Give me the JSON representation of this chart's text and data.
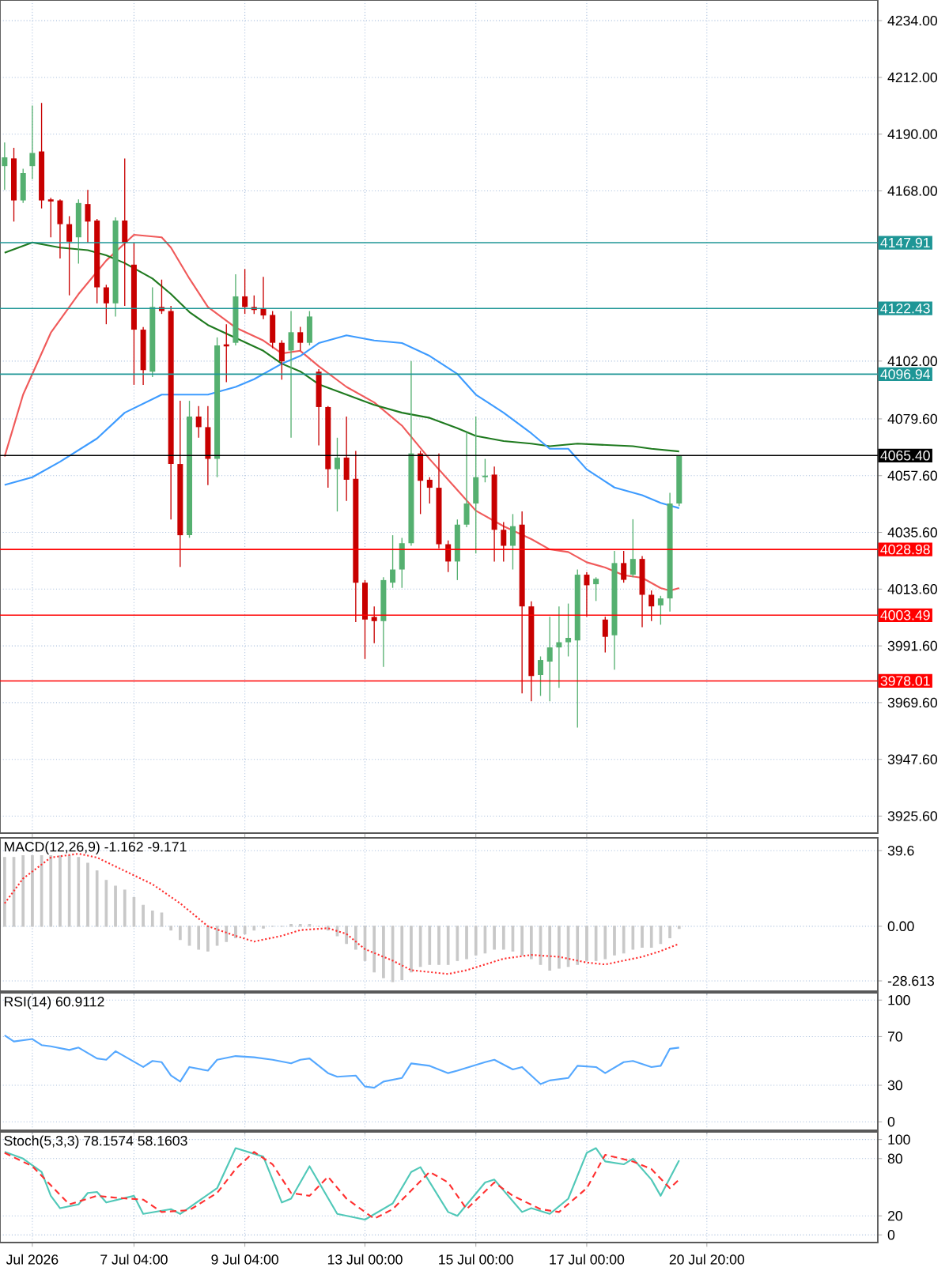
{
  "chart_data": [
    {
      "type": "candlestick",
      "categories": [
        null,
        null,
        null,
        null,
        null,
        null,
        null,
        null,
        null,
        null,
        null,
        null,
        null,
        null,
        null,
        null,
        null,
        null,
        null,
        null,
        null,
        null,
        null,
        null,
        null,
        null,
        null,
        null,
        null,
        null,
        null,
        null,
        null,
        null,
        null,
        null,
        null,
        null,
        null,
        null,
        null,
        null,
        null,
        null,
        null,
        null,
        null,
        null,
        null,
        null,
        null,
        null,
        null,
        null,
        null,
        null,
        null,
        null,
        null,
        null,
        null,
        null,
        null,
        null,
        null,
        null,
        null,
        null,
        null,
        null,
        null,
        null,
        null,
        null,
        null,
        null,
        null,
        null,
        null,
        null,
        null,
        null,
        null,
        null,
        null,
        null,
        null,
        null,
        null,
        null,
        null,
        null,
        null,
        null,
        null
      ],
      "ohlc": [
        [
          4177.6,
          4186.8,
          4168.4,
          4181.0
        ],
        [
          4180.6,
          4184.7,
          4156.1,
          4164.3
        ],
        [
          4164.3,
          4176.6,
          4163.3,
          4174.9
        ],
        [
          4177.6,
          4201.1,
          4172.5,
          4182.7
        ],
        [
          4183.3,
          4202.1,
          4161.2,
          4164.3
        ],
        [
          4164.7,
          4165.3,
          4150.0,
          4163.9
        ],
        [
          4164.3,
          4164.7,
          4141.8,
          4155.1
        ],
        [
          4155.1,
          4158.2,
          4127.5,
          4148.3
        ],
        [
          4150.0,
          4164.7,
          4139.8,
          4163.3
        ],
        [
          4162.9,
          4168.4,
          4147.9,
          4156.1
        ],
        [
          4156.5,
          4157.1,
          4124.4,
          4130.6
        ],
        [
          4130.6,
          4131.6,
          4116.3,
          4124.4
        ],
        [
          4124.4,
          4157.7,
          4119.3,
          4156.5
        ],
        [
          4156.5,
          4180.6,
          4123.4,
          4147.9
        ],
        [
          4139.4,
          4147.9,
          4092.8,
          4114.2
        ],
        [
          4114.2,
          4115.2,
          4092.8,
          4098.5
        ],
        [
          4097.9,
          4130.6,
          4095.8,
          4123.0
        ],
        [
          4123.0,
          4133.6,
          4120.3,
          4121.4
        ],
        [
          4121.4,
          4123.4,
          4040.6,
          4062.1
        ],
        [
          4062.1,
          4086.6,
          4022.2,
          4034.5
        ],
        [
          4034.5,
          4086.6,
          4033.5,
          4080.5
        ],
        [
          4080.5,
          4084.6,
          4072.3,
          4076.4
        ],
        [
          4076.4,
          4084.6,
          4053.9,
          4064.1
        ],
        [
          4064.1,
          4111.2,
          4057.0,
          4108.1
        ],
        [
          4108.5,
          4116.3,
          4093.8,
          4107.7
        ],
        [
          4109.1,
          4135.7,
          4108.1,
          4127.1
        ],
        [
          4127.1,
          4137.7,
          4120.3,
          4123.0
        ],
        [
          4123.0,
          4127.5,
          4120.3,
          4121.8
        ],
        [
          4122.4,
          4134.7,
          4118.3,
          4119.7
        ],
        [
          4119.9,
          4121.4,
          4107.0,
          4109.1
        ],
        [
          4109.1,
          4110.1,
          4094.8,
          4101.9
        ],
        [
          4106.1,
          4121.4,
          4072.3,
          4113.2
        ],
        [
          4113.2,
          4115.3,
          4106.1,
          4109.1
        ],
        [
          4109.1,
          4121.4,
          4108.1,
          4119.3
        ],
        [
          4097.9,
          4098.9,
          4069.3,
          4084.2
        ],
        [
          4084.2,
          4084.6,
          4052.9,
          4060.1
        ],
        [
          4060.1,
          4072.3,
          4043.7,
          4064.6
        ],
        [
          4064.6,
          4080.5,
          4047.8,
          4056.0
        ],
        [
          4056.4,
          4067.2,
          4000.8,
          4016.1
        ],
        [
          4016.1,
          4017.1,
          3986.5,
          4001.8
        ],
        [
          4002.8,
          4006.9,
          3992.6,
          4001.2
        ],
        [
          4001.2,
          4018.2,
          3983.4,
          4017.1
        ],
        [
          4016.1,
          4034.5,
          4014.1,
          4021.2
        ],
        [
          4021.2,
          4033.5,
          4014.1,
          4031.4
        ],
        [
          4031.4,
          4102.0,
          4030.4,
          4066.2
        ],
        [
          4066.2,
          4067.2,
          4042.7,
          4055.6
        ],
        [
          4056.0,
          4057.0,
          4046.8,
          4052.9
        ],
        [
          4052.9,
          4066.2,
          4029.4,
          4031.0
        ],
        [
          4031.0,
          4032.5,
          4020.2,
          4024.3
        ],
        [
          4024.3,
          4040.6,
          4017.1,
          4038.6
        ],
        [
          4038.6,
          4074.4,
          4037.6,
          4046.8
        ],
        [
          4046.8,
          4080.5,
          4027.4,
          4057.0
        ],
        [
          4057.0,
          4064.1,
          4055.0,
          4057.6
        ],
        [
          4058.0,
          4061.1,
          4024.3,
          4036.6
        ],
        [
          4036.6,
          4039.6,
          4024.3,
          4030.4
        ],
        [
          4030.4,
          4042.7,
          4021.2,
          4038.0
        ],
        [
          4038.6,
          4043.7,
          3973.2,
          4006.9
        ],
        [
          4006.9,
          4008.9,
          3970.1,
          3979.9
        ],
        [
          3980.3,
          3987.5,
          3972.2,
          3986.1
        ],
        [
          3985.5,
          4002.9,
          3970.1,
          3991.0
        ],
        [
          3991.0,
          4006.9,
          3975.3,
          3993.0
        ],
        [
          3993.0,
          4008.0,
          3987.5,
          3994.7
        ],
        [
          3993.7,
          4021.2,
          3959.9,
          4019.2
        ],
        [
          4019.2,
          4020.2,
          4002.9,
          4015.1
        ],
        [
          4015.5,
          4018.2,
          4009.0,
          4017.6
        ],
        [
          4001.8,
          4002.9,
          3989.0,
          3995.1
        ],
        [
          3995.7,
          4028.4,
          3982.4,
          4023.7
        ],
        [
          4023.7,
          4028.4,
          4016.1,
          4017.2
        ],
        [
          4019.2,
          4040.7,
          4018.2,
          4025.3
        ],
        [
          4025.3,
          4026.4,
          3998.8,
          4011.4
        ],
        [
          4011.4,
          4013.1,
          4001.2,
          4006.9
        ],
        [
          4007.3,
          4011.0,
          3999.8,
          4010.0
        ],
        [
          4010.0,
          4050.9,
          4004.9,
          4046.8
        ],
        [
          4046.8,
          4065.4,
          4045.8,
          4065.4
        ],
        null,
        null,
        null,
        null,
        null,
        null,
        null,
        null,
        null,
        null,
        null,
        null,
        null,
        null,
        null,
        null,
        null,
        null,
        null,
        null,
        null
      ],
      "colors": [
        "#55b070",
        "#c80000",
        "#55b070",
        "#55b070",
        "#c80000",
        "#c80000",
        "#c80000",
        "#c80000",
        "#55b070",
        "#c80000",
        "#c80000",
        "#c80000",
        "#55b070",
        "#c80000",
        "#c80000",
        "#c80000",
        "#55b070",
        "#c80000",
        "#c80000",
        "#c80000",
        "#55b070",
        "#c80000",
        "#c80000",
        "#55b070",
        "#c80000",
        "#55b070",
        "#c80000",
        "#c80000",
        "#c80000",
        "#c80000",
        "#c80000",
        "#55b070",
        "#c80000",
        "#55b070",
        "#c80000",
        "#c80000",
        "#55b070",
        "#c80000",
        "#c80000",
        "#c80000",
        "#c80000",
        "#55b070",
        "#55b070",
        "#55b070",
        "#55b070",
        "#c80000",
        "#c80000",
        "#c80000",
        "#c80000",
        "#55b070",
        "#55b070",
        "#55b070",
        "#55b070",
        "#c80000",
        "#c80000",
        "#55b070",
        "#c80000",
        "#c80000",
        "#55b070",
        "#55b070",
        "#55b070",
        "#55b070",
        "#55b070",
        "#c80000",
        "#55b070",
        "#c80000",
        "#55b070",
        "#c80000",
        "#55b070",
        "#c80000",
        "#c80000",
        "#55b070",
        "#55b070",
        "#55b070",
        null,
        null,
        null,
        null,
        null,
        null,
        null,
        null,
        null,
        null,
        null,
        null,
        null,
        null,
        null,
        null,
        null,
        null,
        null,
        null,
        null
      ],
      "series": [
        {
          "type": "line",
          "color": "#f05a5a",
          "values": [
            4065,
            null,
            4089,
            null,
            null,
            4113,
            null,
            null,
            4128,
            null,
            null,
            4141,
            null,
            null,
            4151,
            null,
            null,
            4150,
            4146,
            null,
            4134,
            null,
            4123,
            null,
            null,
            4115,
            null,
            null,
            4110,
            null,
            4105,
            null,
            4106,
            null,
            4100,
            null,
            null,
            4092,
            null,
            null,
            4086,
            null,
            null,
            4077,
            null,
            null,
            4064,
            null,
            null,
            4052,
            null,
            4044,
            null,
            null,
            4038,
            null,
            null,
            4033,
            null,
            4029,
            null,
            4028,
            null,
            4024,
            null,
            4022,
            null,
            4019,
            null,
            4018,
            null,
            4014,
            4013,
            4014,
            null,
            null,
            null,
            null,
            null,
            null,
            null,
            null,
            null,
            null,
            null,
            null,
            null,
            null,
            null,
            null,
            null,
            null,
            null,
            null,
            null
          ]
        },
        {
          "type": "line",
          "color": "#1f7a1f",
          "values": [
            4144,
            null,
            null,
            4148,
            null,
            null,
            4146,
            null,
            null,
            4145,
            null,
            4143,
            null,
            4140,
            null,
            null,
            4134,
            null,
            4128,
            null,
            4121,
            null,
            4116,
            null,
            null,
            4111,
            null,
            null,
            4106,
            null,
            4101,
            null,
            4098,
            null,
            4093,
            null,
            null,
            4089,
            null,
            null,
            4085,
            null,
            null,
            4082,
            null,
            null,
            4080,
            null,
            null,
            4076,
            null,
            4073,
            null,
            null,
            4071,
            null,
            null,
            4070,
            null,
            4069,
            null,
            null,
            4070,
            null,
            null,
            null,
            null,
            null,
            4069,
            null,
            4068,
            null,
            null,
            4067,
            null,
            null,
            null,
            null,
            null,
            null,
            null,
            null,
            null,
            null,
            null,
            null,
            null,
            null,
            null,
            null,
            null,
            null,
            null,
            null,
            null
          ]
        },
        {
          "type": "line",
          "color": "#3d9bff",
          "values": [
            4054,
            null,
            null,
            4057,
            null,
            null,
            4063,
            null,
            null,
            null,
            4072,
            null,
            null,
            4082,
            null,
            null,
            null,
            4089,
            null,
            null,
            4089,
            null,
            4089,
            null,
            null,
            4092,
            null,
            4095,
            null,
            null,
            4101,
            null,
            4104,
            null,
            4109,
            null,
            null,
            4112,
            null,
            null,
            4110,
            null,
            null,
            4109,
            null,
            null,
            4104,
            null,
            null,
            4097,
            null,
            4089,
            null,
            null,
            4082,
            null,
            null,
            4074,
            null,
            4068,
            null,
            4068,
            null,
            4060,
            null,
            null,
            4053,
            null,
            null,
            4050,
            null,
            4047,
            null,
            4045,
            null,
            null,
            null,
            null,
            null,
            null,
            null,
            null,
            null,
            null,
            null,
            null,
            null,
            null,
            null,
            null,
            null,
            null,
            null,
            null,
            null
          ]
        }
      ],
      "ylim": [
        3919,
        4242
      ],
      "yticks": [
        {
          "value": 4234,
          "label": "4234.00"
        },
        {
          "value": 4212,
          "label": "4212.00"
        },
        {
          "value": 4190,
          "label": "4190.00"
        },
        {
          "value": 4168,
          "label": "4168.00"
        },
        {
          "value": 4102,
          "label": "4102.00"
        },
        {
          "value": 4079.6,
          "label": "4079.60"
        },
        {
          "value": 4057.6,
          "label": "4057.60"
        },
        {
          "value": 4035.6,
          "label": "4035.60"
        },
        {
          "value": 4013.6,
          "label": "4013.60"
        },
        {
          "value": 3991.6,
          "label": "3991.60"
        },
        {
          "value": 3969.6,
          "label": "3969.60"
        },
        {
          "value": 3947.6,
          "label": "3947.60"
        },
        {
          "value": 3925.6,
          "label": "3925.60"
        }
      ],
      "ref_lines": [
        {
          "axis": "y",
          "value": 4147.91,
          "label": "4147.91",
          "color": "#1e9696"
        },
        {
          "axis": "y",
          "value": 4122.43,
          "label": "4122.43",
          "color": "#1e9696"
        },
        {
          "axis": "y",
          "value": 4096.94,
          "label": "4096.94",
          "color": "#1e9696"
        },
        {
          "axis": "y",
          "value": 4065.4,
          "label": "4065.40",
          "color": "#000000"
        },
        {
          "axis": "y",
          "value": 4028.98,
          "label": "4028.98",
          "color": "#ff0000"
        },
        {
          "axis": "y",
          "value": 4003.49,
          "label": "4003.49",
          "color": "#ff0000"
        },
        {
          "axis": "y",
          "value": 3978.01,
          "label": "3978.01",
          "color": "#ff0000"
        }
      ],
      "grid": true,
      "tick_labels": "y"
    },
    {
      "type": "bar",
      "title": "MACD(12,26,9) -1.162 -9.171",
      "categories": [
        null,
        null,
        null,
        null,
        null,
        null,
        null,
        null,
        null,
        null,
        null,
        null,
        null,
        null,
        null,
        null,
        null,
        null,
        null,
        null,
        null,
        null,
        null,
        null,
        null,
        null,
        null,
        null,
        null,
        null,
        null,
        null,
        null,
        null,
        null,
        null,
        null,
        null,
        null,
        null,
        null,
        null,
        null,
        null,
        null,
        null,
        null,
        null,
        null,
        null,
        null,
        null,
        null,
        null,
        null,
        null,
        null,
        null,
        null,
        null,
        null,
        null,
        null,
        null,
        null,
        null,
        null,
        null,
        null,
        null,
        null,
        null,
        null,
        null,
        null,
        null,
        null,
        null,
        null,
        null,
        null,
        null,
        null,
        null,
        null,
        null,
        null,
        null,
        null,
        null,
        null,
        null,
        null,
        null,
        null
      ],
      "series": [
        {
          "color": "#c8c8c8",
          "values": [
            36,
            36,
            37,
            37,
            37,
            37,
            37,
            37,
            36,
            33,
            29,
            24,
            21,
            19,
            15,
            11,
            8,
            7,
            -2,
            -7,
            -10,
            -12,
            -13,
            -10,
            -8,
            -6,
            -4,
            -2,
            -1,
            0,
            0,
            1,
            1,
            1,
            0,
            -2,
            -5,
            -9,
            -12,
            -18,
            -24,
            -27,
            -29,
            -28,
            -24,
            -21,
            -20,
            -20,
            -20,
            -18,
            -17,
            -15,
            -14,
            -12,
            -12,
            -13,
            -15,
            -17,
            -20,
            -23,
            -22,
            -21,
            -20,
            -18,
            -18,
            -17,
            -15,
            -14,
            -12,
            -11,
            -11,
            -9,
            -6,
            -1.162,
            null,
            null,
            null,
            null,
            null,
            null,
            null,
            null,
            null,
            null,
            null,
            null,
            null,
            null,
            null,
            null,
            null,
            null,
            null,
            null,
            null
          ]
        },
        {
          "type": "line",
          "color": "#ff3030",
          "line_style": "dotted",
          "values": [
            12,
            null,
            25,
            null,
            null,
            36,
            null,
            null,
            38,
            null,
            36,
            null,
            null,
            29,
            null,
            null,
            22,
            null,
            null,
            12,
            null,
            null,
            0,
            null,
            null,
            -5,
            null,
            -8,
            null,
            null,
            -5,
            null,
            -2,
            null,
            null,
            -1,
            null,
            -4,
            null,
            -12,
            null,
            null,
            -18,
            null,
            -23,
            null,
            null,
            null,
            -25,
            null,
            -23,
            null,
            null,
            null,
            -17,
            null,
            null,
            -15,
            null,
            null,
            -16,
            null,
            null,
            -19,
            null,
            -20,
            null,
            null,
            null,
            -16,
            null,
            -13,
            null,
            -9.171,
            null,
            null,
            null,
            null,
            null,
            null,
            null,
            null,
            null,
            null,
            null,
            null,
            null,
            null,
            null,
            null,
            null,
            null,
            null,
            null,
            null
          ]
        }
      ],
      "ylim": [
        -34,
        46.3
      ],
      "yticks": [
        39.6,
        {
          "value": 0,
          "label": "0.00"
        },
        -28.613
      ],
      "grid": true,
      "tick_labels": "y"
    },
    {
      "type": "line",
      "title": "RSI(14) 60.9112",
      "categories": [
        null,
        null,
        null,
        null,
        null,
        null,
        null,
        null,
        null,
        null,
        null,
        null,
        null,
        null,
        null,
        null,
        null,
        null,
        null,
        null,
        null,
        null,
        null,
        null,
        null,
        null,
        null,
        null,
        null,
        null,
        null,
        null,
        null,
        null,
        null,
        null,
        null,
        null,
        null,
        null,
        null,
        null,
        null,
        null,
        null,
        null,
        null,
        null,
        null,
        null,
        null,
        null,
        null,
        null,
        null,
        null,
        null,
        null,
        null,
        null,
        null,
        null,
        null,
        null,
        null,
        null,
        null,
        null,
        null,
        null,
        null,
        null,
        null,
        null,
        null,
        null,
        null,
        null,
        null,
        null,
        null,
        null,
        null,
        null,
        null,
        null,
        null,
        null,
        null,
        null,
        null,
        null,
        null,
        null,
        null
      ],
      "series": [
        {
          "color": "#55a8ff",
          "values": [
            71,
            66,
            null,
            68,
            63,
            62,
            null,
            59,
            61,
            null,
            52,
            51,
            58,
            null,
            null,
            45,
            50,
            49,
            38,
            33,
            45,
            null,
            42,
            51,
            null,
            54,
            null,
            53,
            null,
            51,
            null,
            48,
            51,
            52,
            null,
            40,
            37,
            null,
            38,
            29,
            28,
            33,
            null,
            36,
            48,
            null,
            46,
            null,
            40,
            42,
            null,
            null,
            49,
            51,
            null,
            43,
            45,
            null,
            31,
            34,
            null,
            36,
            46,
            null,
            45,
            40,
            null,
            49,
            50,
            null,
            45,
            46,
            60,
            60.9112,
            null,
            null,
            null,
            null,
            null,
            null,
            null,
            null,
            null,
            null,
            null,
            null,
            null,
            null,
            null,
            null,
            null,
            null,
            null,
            null,
            null
          ]
        }
      ],
      "ylim": [
        -7,
        106
      ],
      "yticks": [
        0,
        30,
        70,
        100
      ],
      "grid": true,
      "tick_labels": "y"
    },
    {
      "type": "line",
      "title": "Stoch(5,3,3) 78.1574 58.1603",
      "categories": [
        null,
        null,
        null,
        "Jul 2026",
        null,
        null,
        null,
        null,
        null,
        null,
        null,
        null,
        null,
        null,
        "7 Jul 04:00",
        null,
        null,
        null,
        null,
        null,
        null,
        null,
        null,
        null,
        null,
        null,
        "9 Jul 04:00",
        null,
        null,
        null,
        null,
        null,
        null,
        null,
        null,
        null,
        null,
        null,
        null,
        "13 Jul 00:00",
        null,
        null,
        null,
        null,
        null,
        null,
        null,
        null,
        null,
        null,
        null,
        "15 Jul 00:00",
        null,
        null,
        null,
        null,
        null,
        null,
        null,
        null,
        null,
        null,
        null,
        "17 Jul 00:00",
        null,
        null,
        null,
        null,
        null,
        null,
        null,
        null,
        null,
        null,
        null,
        null,
        "20 Jul 20:00",
        null,
        null,
        null,
        null,
        null,
        null,
        null,
        null,
        null,
        null,
        null,
        null,
        null,
        null,
        null,
        null,
        null,
        null
      ],
      "series": [
        {
          "color": "#50c8b8",
          "values": [
            87,
            null,
            80,
            null,
            66,
            41,
            28,
            null,
            32,
            44,
            45,
            34,
            null,
            null,
            41,
            22,
            null,
            null,
            27,
            22,
            null,
            null,
            null,
            49,
            null,
            91,
            null,
            null,
            82,
            null,
            34,
            38,
            null,
            72,
            null,
            null,
            22,
            null,
            null,
            16,
            null,
            null,
            33,
            null,
            66,
            71,
            null,
            null,
            24,
            20,
            null,
            null,
            55,
            58,
            null,
            null,
            24,
            28,
            null,
            22,
            null,
            38,
            null,
            86,
            91,
            77,
            null,
            74,
            80,
            null,
            58,
            41,
            null,
            78.1574,
            null,
            null,
            null,
            null,
            null,
            null,
            null,
            null,
            null,
            null,
            null,
            null,
            null,
            null,
            null,
            null,
            null,
            null,
            null,
            null,
            null
          ]
        },
        {
          "color": "#ff3030",
          "line_style": "dashed",
          "values": [
            86,
            null,
            null,
            72,
            null,
            52,
            null,
            32,
            null,
            null,
            41,
            null,
            39,
            null,
            null,
            37,
            null,
            24,
            null,
            null,
            26,
            null,
            null,
            44,
            null,
            69,
            null,
            87,
            null,
            74,
            null,
            44,
            null,
            41,
            null,
            61,
            null,
            38,
            null,
            null,
            17,
            null,
            27,
            null,
            null,
            null,
            66,
            null,
            55,
            null,
            27,
            null,
            null,
            55,
            null,
            41,
            null,
            null,
            27,
            null,
            24,
            null,
            null,
            49,
            null,
            84,
            null,
            null,
            77,
            null,
            69,
            null,
            49,
            58.1603,
            null,
            null,
            null,
            null,
            null,
            null,
            null,
            null,
            null,
            null,
            null,
            null,
            null,
            null,
            null,
            null,
            null,
            null,
            null,
            null,
            null
          ]
        }
      ],
      "ylim": [
        -8,
        108
      ],
      "yticks": [
        0,
        20,
        80,
        100
      ],
      "grid": true
    }
  ]
}
